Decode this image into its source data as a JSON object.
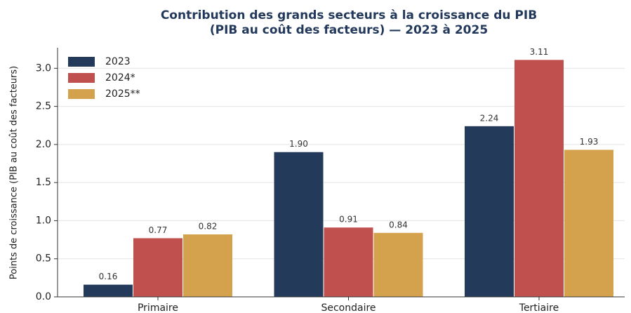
{
  "chart_data": {
    "type": "bar",
    "title": "Contribution des grands secteurs à la croissance du PIB",
    "subtitle": "(PIB au coût des facteurs) — 2023 à 2025",
    "y_label": "Points de croissance (PIB au coût des facteurs)",
    "categories": [
      "Primaire",
      "Secondaire",
      "Tertiaire"
    ],
    "series": [
      {
        "name": "2023",
        "color": "#233a5a",
        "values": [
          0.16,
          1.9,
          2.24
        ],
        "value_labels": [
          "0.16",
          "1.90",
          "2.24"
        ]
      },
      {
        "name": "2024*",
        "color": "#c0504d",
        "values": [
          0.77,
          0.91,
          3.11
        ],
        "value_labels": [
          "0.77",
          "0.91",
          "3.11"
        ]
      },
      {
        "name": "2025**",
        "color": "#d4a24c",
        "values": [
          0.82,
          0.84,
          1.93
        ],
        "value_labels": [
          "0.82",
          "0.84",
          "1.93"
        ]
      }
    ],
    "ylim": [
      0,
      3.27
    ],
    "yticks": [
      {
        "value": 0,
        "label": "0.0"
      },
      0.5,
      {
        "value": 1,
        "label": "1.0"
      },
      1.5,
      {
        "value": 2,
        "label": "2.0"
      },
      2.5,
      {
        "value": 3,
        "label": "3.0"
      }
    ],
    "grid": true,
    "legend": "upper left"
  }
}
